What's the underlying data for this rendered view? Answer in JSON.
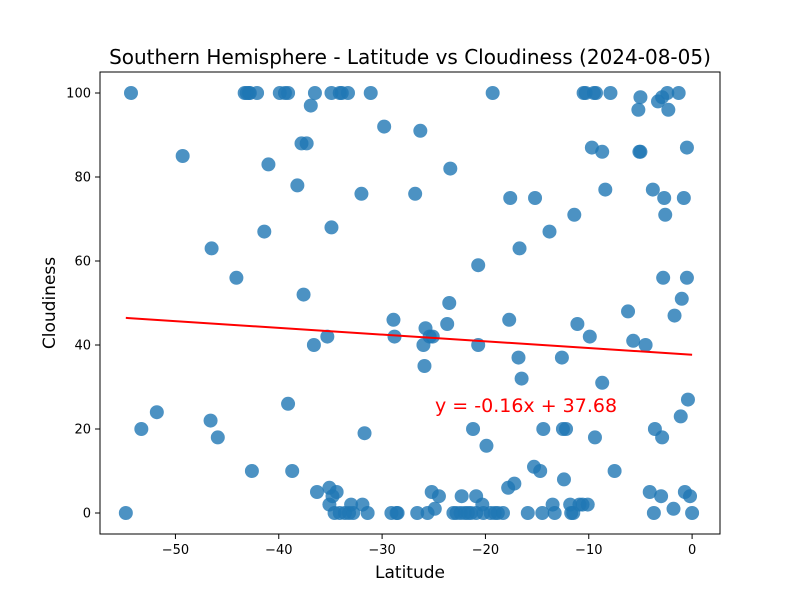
{
  "chart_data": {
    "type": "scatter",
    "title": "Southern Hemisphere - Latitude vs Cloudiness (2024-08-05)",
    "xlabel": "Latitude",
    "ylabel": "Cloudiness",
    "xlim": [
      -57.3,
      2.7
    ],
    "ylim": [
      -5,
      105
    ],
    "xticks": [
      -50,
      -40,
      -30,
      -20,
      -10,
      0
    ],
    "yticks": [
      0,
      20,
      40,
      60,
      80,
      100
    ],
    "grid": false,
    "annotation": "y = -0.16x + 37.68",
    "colors": {
      "points": "#1f77b4",
      "regression": "#ff0000",
      "annotation": "#ff0000"
    },
    "regression": {
      "slope": -0.16,
      "intercept": 37.68,
      "x_range": [
        -54.8,
        0.0
      ]
    },
    "series": [
      {
        "points": [
          [
            -54.8,
            0
          ],
          [
            -54.3,
            100
          ],
          [
            -53.3,
            20
          ],
          [
            -51.8,
            24
          ],
          [
            -49.3,
            85
          ],
          [
            -46.5,
            63
          ],
          [
            -46.6,
            22
          ],
          [
            -45.9,
            18
          ],
          [
            -44.1,
            56
          ],
          [
            -42.6,
            10
          ],
          [
            -43.3,
            100
          ],
          [
            -43.1,
            100
          ],
          [
            -42.9,
            100
          ],
          [
            -42.8,
            100
          ],
          [
            -42.1,
            100
          ],
          [
            -41.4,
            67
          ],
          [
            -41.0,
            83
          ],
          [
            -39.9,
            100
          ],
          [
            -39.4,
            100
          ],
          [
            -39.1,
            100
          ],
          [
            -39.1,
            26
          ],
          [
            -38.7,
            10
          ],
          [
            -38.2,
            78
          ],
          [
            -37.8,
            88
          ],
          [
            -37.3,
            88
          ],
          [
            -37.6,
            52
          ],
          [
            -36.9,
            97
          ],
          [
            -36.5,
            100
          ],
          [
            -36.6,
            40
          ],
          [
            -36.3,
            5
          ],
          [
            -35.3,
            42
          ],
          [
            -35.1,
            6
          ],
          [
            -35.1,
            2
          ],
          [
            -34.9,
            68
          ],
          [
            -34.8,
            4
          ],
          [
            -34.6,
            0
          ],
          [
            -34.4,
            5
          ],
          [
            -34.1,
            0
          ],
          [
            -34.9,
            100
          ],
          [
            -34.1,
            100
          ],
          [
            -33.9,
            100
          ],
          [
            -33.6,
            0
          ],
          [
            -33.2,
            0
          ],
          [
            -33.3,
            100
          ],
          [
            -33.0,
            2
          ],
          [
            -32.8,
            0
          ],
          [
            -32.0,
            76
          ],
          [
            -31.9,
            2
          ],
          [
            -31.7,
            19
          ],
          [
            -31.4,
            0
          ],
          [
            -31.1,
            100
          ],
          [
            -29.8,
            92
          ],
          [
            -29.1,
            0
          ],
          [
            -28.9,
            46
          ],
          [
            -28.8,
            42
          ],
          [
            -28.6,
            0
          ],
          [
            -28.5,
            0
          ],
          [
            -26.8,
            76
          ],
          [
            -26.6,
            0
          ],
          [
            -26.3,
            91
          ],
          [
            -26.0,
            40
          ],
          [
            -25.9,
            35
          ],
          [
            -25.8,
            44
          ],
          [
            -25.6,
            0
          ],
          [
            -25.4,
            42
          ],
          [
            -25.1,
            42
          ],
          [
            -25.2,
            5
          ],
          [
            -24.9,
            1
          ],
          [
            -24.5,
            4
          ],
          [
            -23.7,
            45
          ],
          [
            -23.5,
            50
          ],
          [
            -23.4,
            82
          ],
          [
            -23.1,
            0
          ],
          [
            -22.8,
            0
          ],
          [
            -22.4,
            0
          ],
          [
            -22.3,
            4
          ],
          [
            -22.0,
            0
          ],
          [
            -21.7,
            0
          ],
          [
            -21.4,
            0
          ],
          [
            -21.2,
            20
          ],
          [
            -20.9,
            4
          ],
          [
            -20.9,
            0
          ],
          [
            -20.7,
            59
          ],
          [
            -20.7,
            40
          ],
          [
            -20.3,
            2
          ],
          [
            -20.2,
            0
          ],
          [
            -19.9,
            16
          ],
          [
            -19.5,
            0
          ],
          [
            -19.3,
            100
          ],
          [
            -19.1,
            0
          ],
          [
            -18.8,
            0
          ],
          [
            -18.3,
            0
          ],
          [
            -17.8,
            6
          ],
          [
            -17.7,
            46
          ],
          [
            -17.6,
            75
          ],
          [
            -17.2,
            7
          ],
          [
            -16.8,
            37
          ],
          [
            -16.7,
            63
          ],
          [
            -16.5,
            32
          ],
          [
            -15.9,
            0
          ],
          [
            -15.3,
            11
          ],
          [
            -15.2,
            75
          ],
          [
            -14.7,
            10
          ],
          [
            -14.5,
            0
          ],
          [
            -14.4,
            20
          ],
          [
            -13.8,
            67
          ],
          [
            -13.5,
            2
          ],
          [
            -13.3,
            0
          ],
          [
            -12.6,
            37
          ],
          [
            -12.5,
            20
          ],
          [
            -12.4,
            8
          ],
          [
            -12.2,
            20
          ],
          [
            -11.8,
            2
          ],
          [
            -11.7,
            0
          ],
          [
            -11.5,
            0
          ],
          [
            -11.4,
            71
          ],
          [
            -11.1,
            45
          ],
          [
            -10.9,
            2
          ],
          [
            -10.6,
            2
          ],
          [
            -10.5,
            100
          ],
          [
            -10.3,
            100
          ],
          [
            -10.1,
            2
          ],
          [
            -9.9,
            42
          ],
          [
            -9.7,
            87
          ],
          [
            -9.5,
            100
          ],
          [
            -9.4,
            18
          ],
          [
            -9.3,
            100
          ],
          [
            -8.7,
            86
          ],
          [
            -8.7,
            31
          ],
          [
            -8.4,
            77
          ],
          [
            -7.9,
            100
          ],
          [
            -7.5,
            10
          ],
          [
            -6.2,
            48
          ],
          [
            -5.7,
            41
          ],
          [
            -5.2,
            96
          ],
          [
            -5.1,
            86
          ],
          [
            -5.0,
            86
          ],
          [
            -5.0,
            99
          ],
          [
            -4.5,
            40
          ],
          [
            -4.1,
            5
          ],
          [
            -3.8,
            77
          ],
          [
            -3.6,
            20
          ],
          [
            -3.7,
            0
          ],
          [
            -3.3,
            98
          ],
          [
            -2.9,
            99
          ],
          [
            -3.0,
            4
          ],
          [
            -2.9,
            18
          ],
          [
            -2.8,
            56
          ],
          [
            -2.7,
            75
          ],
          [
            -2.6,
            71
          ],
          [
            -2.4,
            100
          ],
          [
            -2.3,
            96
          ],
          [
            -1.8,
            1
          ],
          [
            -1.7,
            47
          ],
          [
            -1.3,
            100
          ],
          [
            -1.1,
            23
          ],
          [
            -1.0,
            51
          ],
          [
            -0.8,
            75
          ],
          [
            -0.7,
            5
          ],
          [
            -0.5,
            87
          ],
          [
            -0.5,
            56
          ],
          [
            -0.4,
            27
          ],
          [
            -0.2,
            4
          ],
          [
            0.0,
            0
          ]
        ]
      }
    ]
  }
}
